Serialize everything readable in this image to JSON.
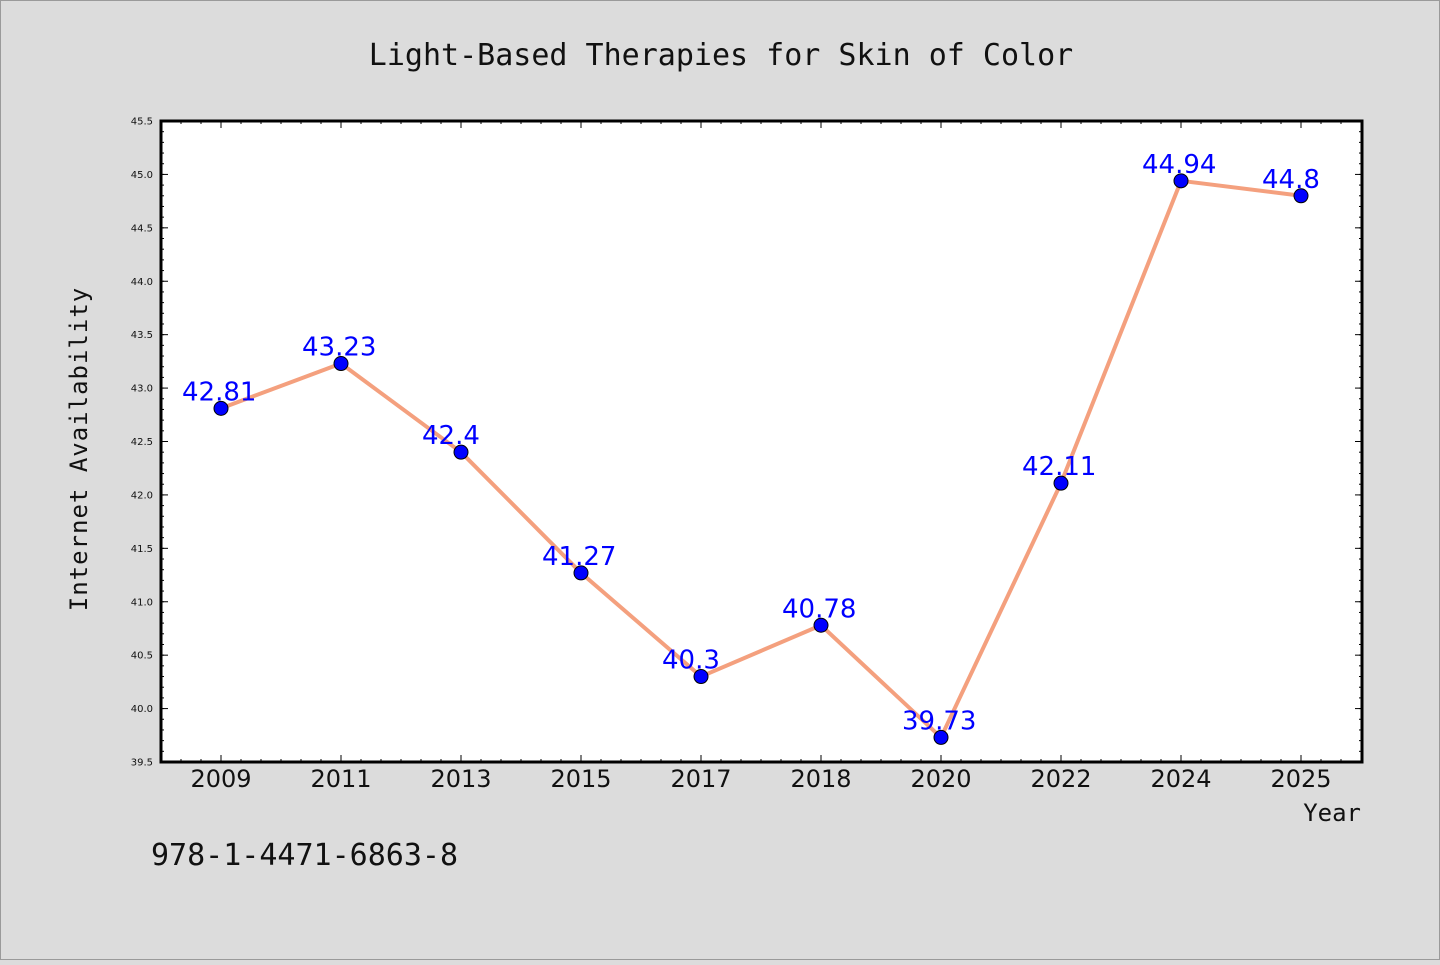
{
  "isbn": "978-1-4471-6863-8",
  "colors": {
    "background": "#dcdcdc",
    "plot_area": "#ffffff",
    "line": "#f4a07e",
    "marker": "#0000ff",
    "label": "#0000ff"
  },
  "chart_data": {
    "type": "line",
    "title": "Light-Based Therapies for Skin of Color",
    "xlabel": "Year",
    "ylabel": "Internet Availability",
    "categories": [
      "2009",
      "2011",
      "2013",
      "2015",
      "2017",
      "2018",
      "2020",
      "2022",
      "2024",
      "2025"
    ],
    "series": [
      {
        "values": [
          42.81,
          43.23,
          42.4,
          41.27,
          40.3,
          40.78,
          39.73,
          42.11,
          44.94,
          44.8
        ],
        "labels": [
          "42.81",
          "43.23",
          "42.4",
          "41.27",
          "40.3",
          "40.78",
          "39.73",
          "42.11",
          "44.94",
          "44.8"
        ]
      }
    ],
    "ylim": [
      39.5,
      45.5
    ],
    "yticks": [
      "39.5",
      "40.0",
      "40.5",
      "41.0",
      "41.5",
      "42.0",
      "42.5",
      "43.0",
      "43.5",
      "44.0",
      "44.5",
      "45.0",
      "45.5"
    ],
    "grid": false,
    "legend": false
  }
}
